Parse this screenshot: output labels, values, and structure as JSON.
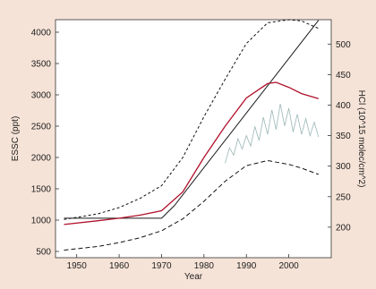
{
  "chart_data": {
    "type": "line",
    "xlabel": "Year",
    "ylabel": "ESSC (ppt)",
    "y2label": "HCl (10^15 molec/cm^2)",
    "xlim": [
      1945,
      2010
    ],
    "ylim": [
      400,
      4200
    ],
    "y2lim": [
      150,
      540
    ],
    "x_ticks": [
      1950,
      1960,
      1970,
      1980,
      1990,
      2000
    ],
    "y_ticks": [
      500,
      1000,
      1500,
      2000,
      2500,
      3000,
      3500,
      4000
    ],
    "y2_ticks": [
      200,
      250,
      300,
      350,
      400,
      450,
      500
    ],
    "grid": false,
    "series": [
      {
        "style": "solid-black",
        "x": [
          1947,
          1970,
          1973,
          2007
        ],
        "y": [
          1030,
          1030,
          1230,
          4190
        ]
      },
      {
        "style": "solid-red",
        "x": [
          1947,
          1955,
          1960,
          1965,
          1970,
          1975,
          1980,
          1985,
          1990,
          1995,
          1997,
          2000,
          2003,
          2007
        ],
        "y": [
          930,
          990,
          1030,
          1080,
          1150,
          1450,
          2000,
          2500,
          2950,
          3180,
          3200,
          3120,
          3020,
          2940
        ]
      },
      {
        "style": "dashed-upper",
        "x": [
          1947,
          1955,
          1960,
          1965,
          1970,
          1975,
          1980,
          1985,
          1990,
          1995,
          2000,
          2003,
          2007
        ],
        "y": [
          1010,
          1100,
          1200,
          1350,
          1550,
          2000,
          2650,
          3250,
          3820,
          4150,
          4200,
          4180,
          4060
        ]
      },
      {
        "style": "dashed-lower",
        "x": [
          1947,
          1955,
          1960,
          1965,
          1970,
          1975,
          1980,
          1985,
          1990,
          1995,
          2000,
          2003,
          2007
        ],
        "y": [
          520,
          580,
          640,
          720,
          830,
          1020,
          1300,
          1620,
          1870,
          1950,
          1890,
          1830,
          1730
        ]
      },
      {
        "style": "hcl-observations",
        "axis": "right",
        "x": [
          1985,
          1986,
          1987,
          1988,
          1989,
          1990,
          1991,
          1992,
          1993,
          1994,
          1995,
          1996,
          1997,
          1998,
          1999,
          2000,
          2001,
          2002,
          2003,
          2004,
          2005,
          2006,
          2007
        ],
        "y": [
          305,
          330,
          318,
          345,
          328,
          350,
          333,
          365,
          342,
          380,
          352,
          392,
          360,
          402,
          366,
          395,
          356,
          385,
          352,
          378,
          350,
          372,
          348
        ]
      }
    ]
  }
}
